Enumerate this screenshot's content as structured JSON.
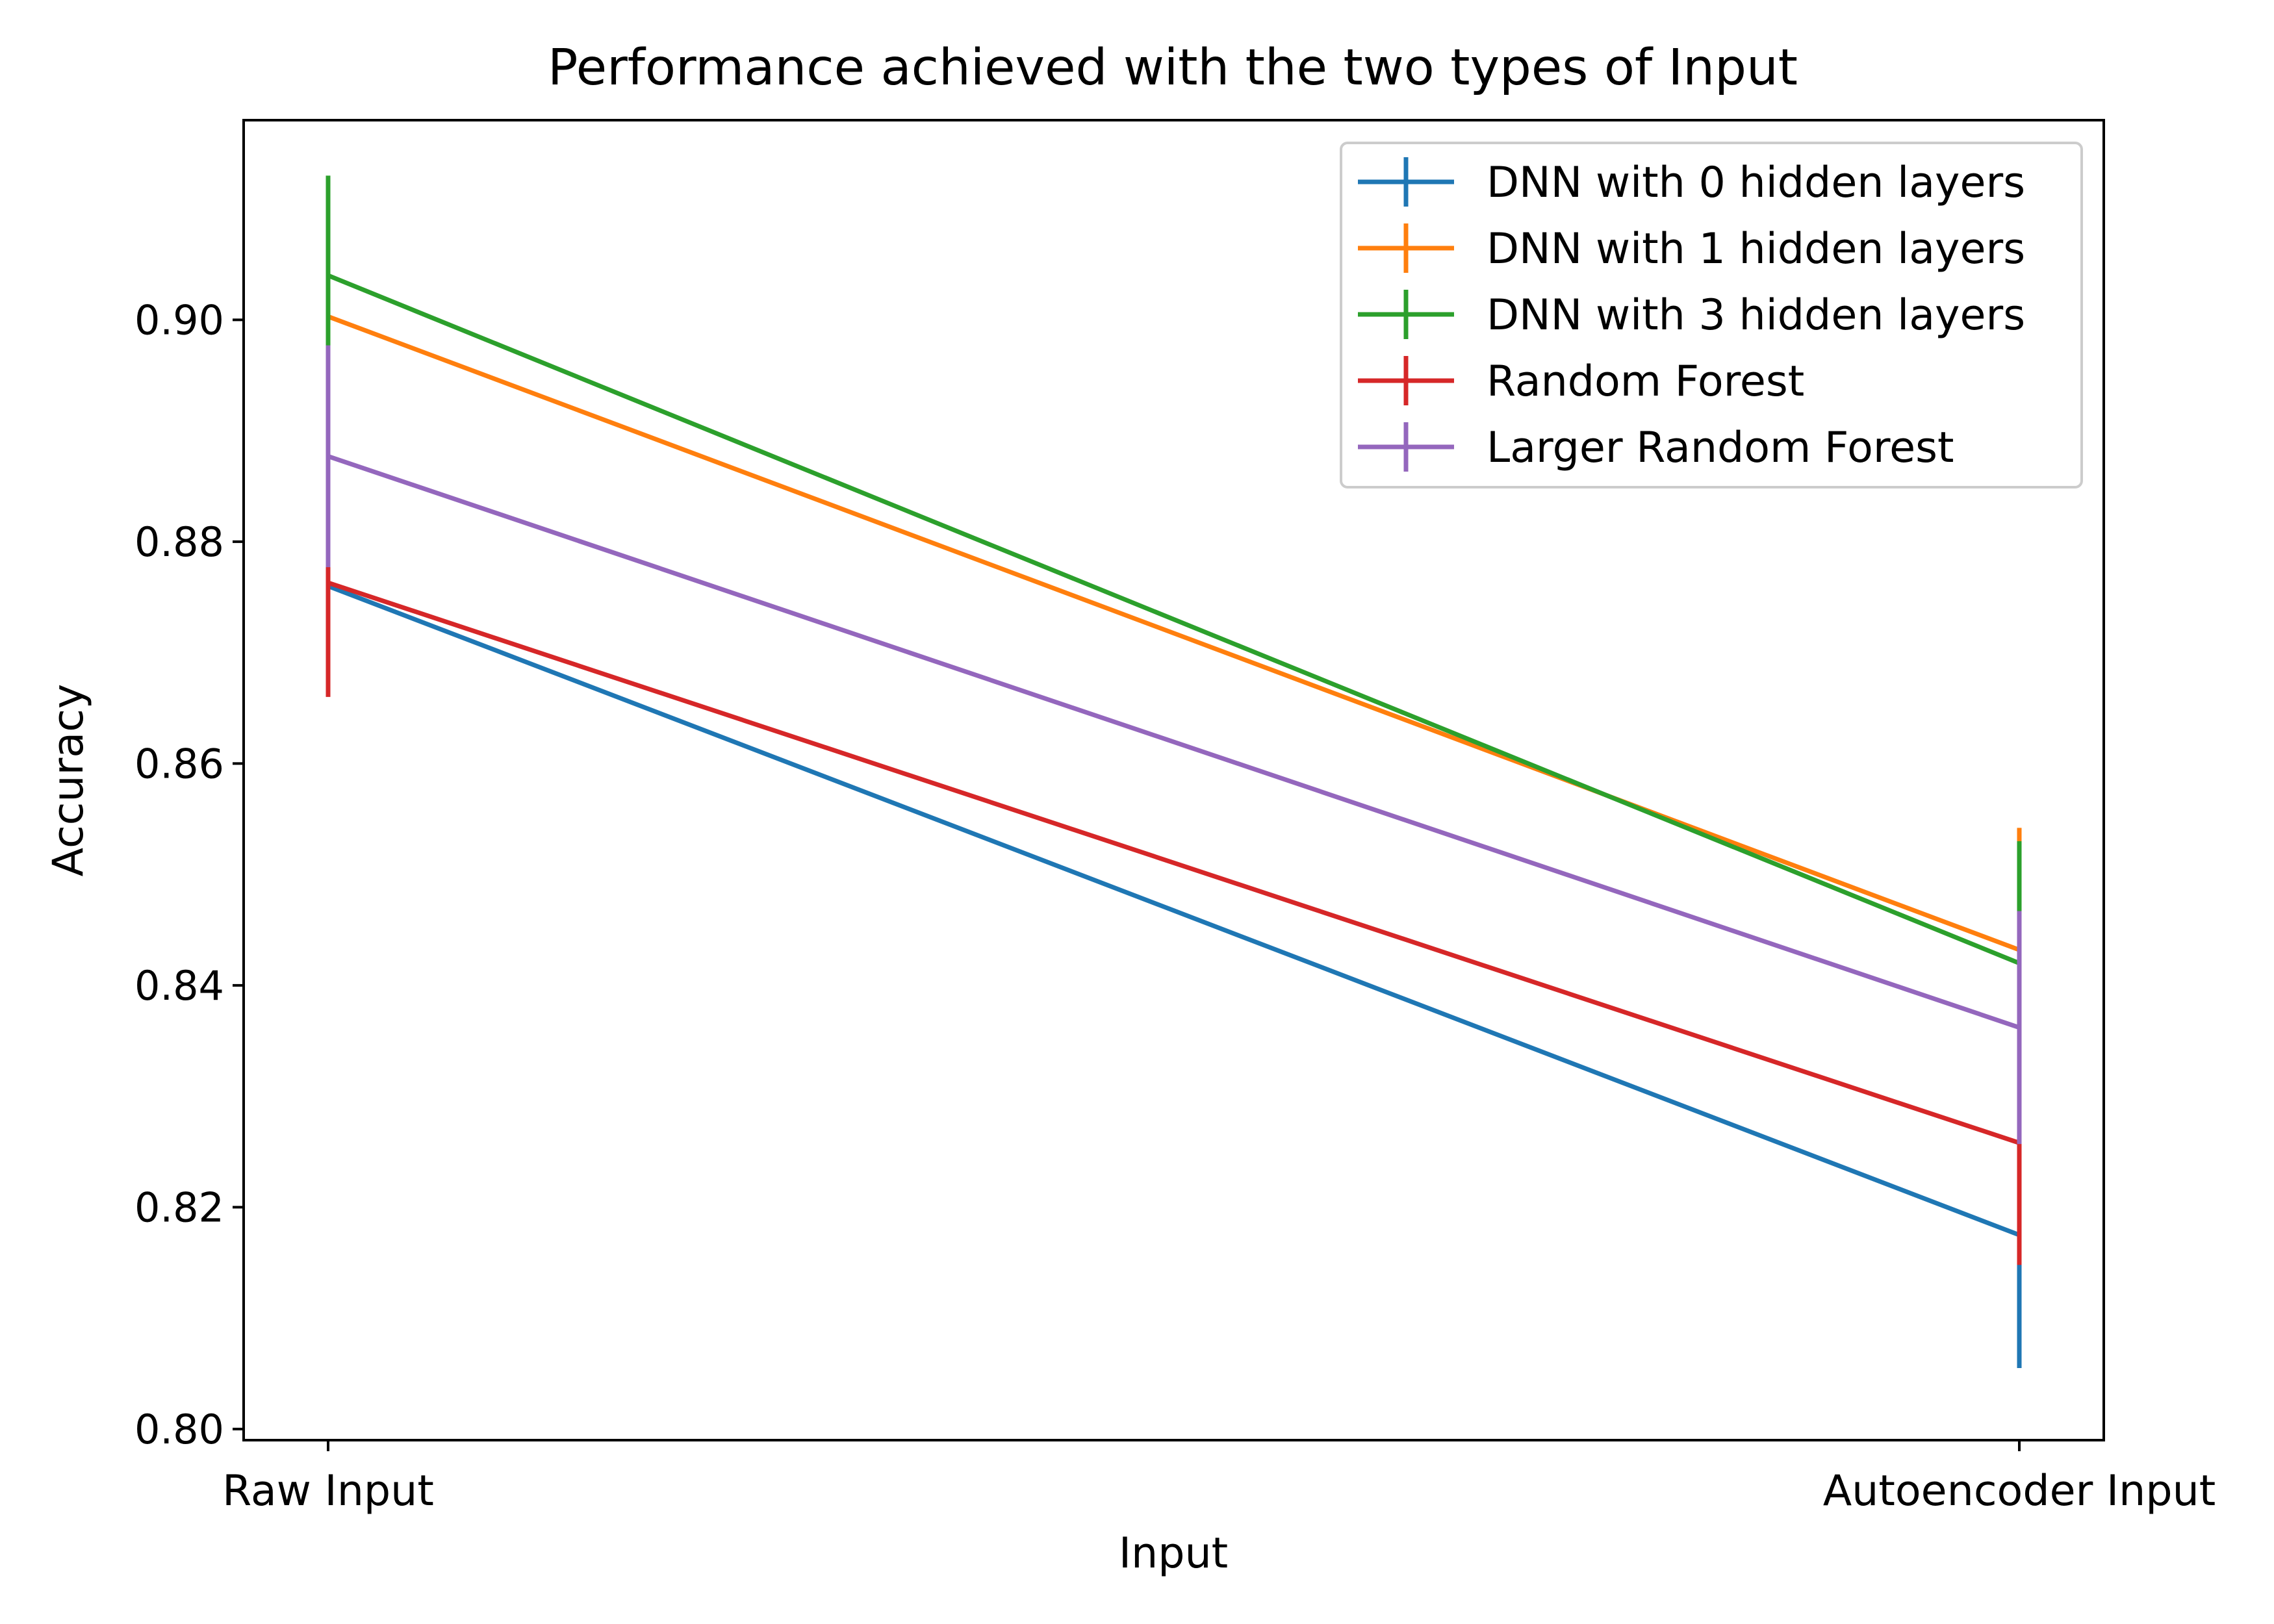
{
  "chart_data": {
    "type": "line",
    "title": "Performance achieved with the two types of Input",
    "xlabel": "Input",
    "ylabel": "Accuracy",
    "categories": [
      "Raw Input",
      "Autoencoder Input"
    ],
    "ylim": [
      0.799,
      0.918
    ],
    "yticks": [
      0.8,
      0.82,
      0.84,
      0.86,
      0.88,
      0.9
    ],
    "ytick_labels": [
      "0.80",
      "0.82",
      "0.84",
      "0.86",
      "0.88",
      "0.90"
    ],
    "grid": false,
    "legend_position": "top-right",
    "series": [
      {
        "name": "DNN with 0 hidden layers",
        "color": "#1f77b4",
        "values": [
          0.876,
          0.8175
        ],
        "errors": [
          0.0005,
          0.012
        ]
      },
      {
        "name": "DNN with 1 hidden layers",
        "color": "#ff7f0e",
        "values": [
          0.9003,
          0.8432
        ],
        "errors": [
          0.002,
          0.011
        ]
      },
      {
        "name": "DNN with 3 hidden layers",
        "color": "#2ca02c",
        "values": [
          0.904,
          0.842
        ],
        "errors": [
          0.009,
          0.011
        ]
      },
      {
        "name": "Random Forest",
        "color": "#d62728",
        "values": [
          0.8763,
          0.8258
        ],
        "errors": [
          0.0103,
          0.011
        ]
      },
      {
        "name": "Larger Random Forest",
        "color": "#9467bd",
        "values": [
          0.8877,
          0.8362
        ],
        "errors": [
          0.01,
          0.0105
        ]
      }
    ]
  }
}
